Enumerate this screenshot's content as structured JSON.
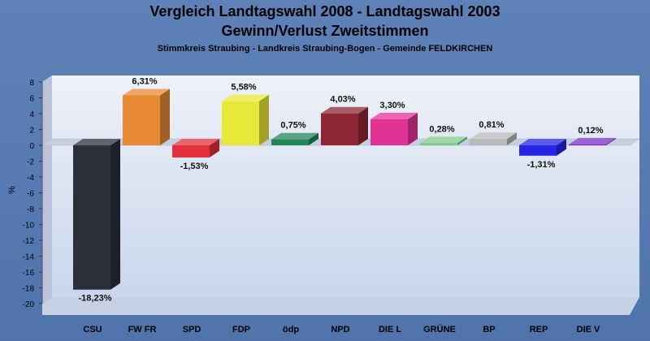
{
  "chart_data": {
    "type": "bar",
    "title": "Vergleich Landtagswahl 2008 - Landtagswahl 2003",
    "subtitle": "Gewinn/Verlust Zweitstimmen",
    "subtitle2": "Stimmkreis Straubing - Landkreis Straubing-Bogen - Gemeinde FELDKIRCHEN",
    "ylabel": "%",
    "ylim": [
      -20,
      8
    ],
    "yticks": [
      8,
      6,
      4,
      2,
      0,
      -2,
      -4,
      -6,
      -8,
      -10,
      -12,
      -14,
      -16,
      -18,
      -20
    ],
    "grid": false,
    "categories": [
      "CSU",
      "FW FR",
      "SPD",
      "FDP",
      "ödp",
      "NPD",
      "DIE L",
      "GRÜNE",
      "BP",
      "REP",
      "DIE V"
    ],
    "values": [
      -18.23,
      6.31,
      -1.53,
      5.58,
      0.75,
      4.03,
      3.3,
      0.28,
      0.81,
      -1.31,
      0.12
    ],
    "labels": [
      "-18,23%",
      "6,31%",
      "-1,53%",
      "5,58%",
      "0,75%",
      "4,03%",
      "3,30%",
      "0,28%",
      "0,81%",
      "-1,31%",
      "0,12%"
    ],
    "colors": [
      "#2a2f38",
      "#e88a34",
      "#e3303a",
      "#e8e839",
      "#23855a",
      "#8e2633",
      "#e23295",
      "#7cce84",
      "#b9b9b9",
      "#2525e6",
      "#7a2ec6"
    ]
  }
}
